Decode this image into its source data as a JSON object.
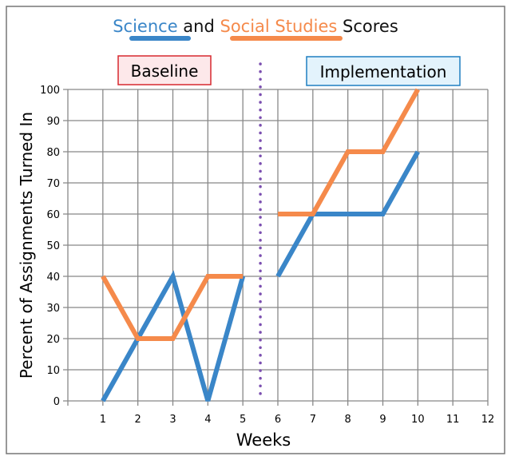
{
  "chart_data": {
    "type": "line",
    "title": {
      "part1": "Science",
      "part2": " and ",
      "part3": "Social Studies",
      "part4": " Scores"
    },
    "xlabel": "Weeks",
    "ylabel": "Percent of Assignments Turned In",
    "x_ticks": [
      "1",
      "2",
      "3",
      "4",
      "5",
      "6",
      "7",
      "8",
      "9",
      "10",
      "11",
      "12"
    ],
    "y_ticks": [
      "0",
      "10",
      "20",
      "30",
      "40",
      "50",
      "60",
      "70",
      "80",
      "90",
      "100"
    ],
    "xlim": [
      0,
      12
    ],
    "ylim": [
      0,
      100
    ],
    "grid": true,
    "phase_labels": {
      "baseline": "Baseline",
      "implementation": "Implementation"
    },
    "phase_change_x": 5.5,
    "series": [
      {
        "name": "Science",
        "color": "#3a86c8",
        "segments": [
          {
            "x": [
              1,
              2,
              3,
              4,
              5
            ],
            "y": [
              0,
              20,
              40,
              0,
              40
            ]
          },
          {
            "x": [
              6,
              7,
              8,
              9,
              10
            ],
            "y": [
              40,
              60,
              60,
              60,
              80
            ]
          }
        ]
      },
      {
        "name": "Social Studies",
        "color": "#f58a4b",
        "segments": [
          {
            "x": [
              1,
              2,
              3,
              4,
              5
            ],
            "y": [
              40,
              20,
              20,
              40,
              40
            ]
          },
          {
            "x": [
              6,
              7,
              8,
              9,
              10
            ],
            "y": [
              60,
              60,
              80,
              80,
              100
            ]
          }
        ]
      }
    ],
    "colors": {
      "baseline_border": "#d7282f",
      "baseline_fill": "#fde8ea",
      "impl_border": "#1f7fc1",
      "impl_fill": "#e3f3fc",
      "phase_line": "#7b4fb0"
    }
  }
}
